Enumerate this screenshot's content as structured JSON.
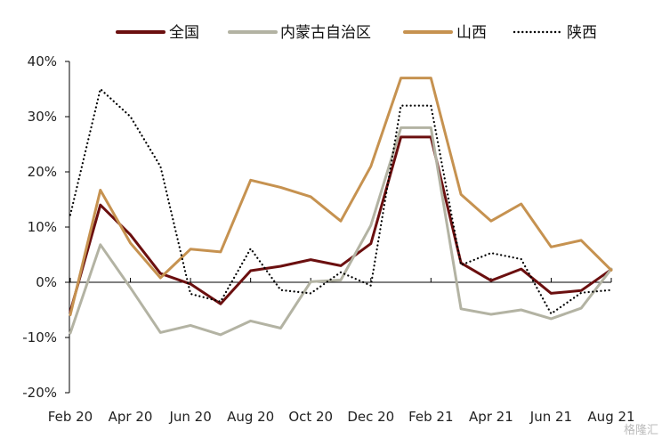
{
  "chart_data": {
    "type": "line",
    "x": [
      "Feb 20",
      "Mar 20",
      "Apr 20",
      "May 20",
      "Jun 20",
      "Jul 20",
      "Aug 20",
      "Sep 20",
      "Oct 20",
      "Nov 20",
      "Dec 20",
      "Jan 21",
      "Feb 21",
      "Mar 21",
      "Apr 21",
      "May 21",
      "Jun 21",
      "Jul 21",
      "Aug 21"
    ],
    "x_tick_labels": [
      "Feb 20",
      "Apr 20",
      "Jun 20",
      "Aug 20",
      "Oct 20",
      "Dec 20",
      "Feb 21",
      "Apr 21",
      "Jun 21",
      "Aug 21"
    ],
    "y_tick_labels": [
      "40%",
      "30%",
      "20%",
      "10%",
      "0%",
      "-10%",
      "-20%"
    ],
    "ylim": [
      -20,
      40
    ],
    "title": "",
    "xlabel": "",
    "ylabel": "",
    "legend_position": "top",
    "grid": false,
    "series": [
      {
        "name": "全国",
        "color": "#6b0f0f",
        "style": "solid",
        "values": [
          -5.3,
          14.0,
          8.6,
          1.6,
          -0.3,
          -3.9,
          2.1,
          2.9,
          4.1,
          3.0,
          7.0,
          26.3,
          26.3,
          3.5,
          0.3,
          2.4,
          -2.0,
          -1.5,
          2.3
        ]
      },
      {
        "name": "内蒙古自治区",
        "color": "#b3b3a3",
        "style": "solid",
        "values": [
          -9.2,
          6.8,
          -1.0,
          -9.1,
          -7.8,
          -9.5,
          -7.0,
          -8.3,
          0.1,
          0.4,
          10.3,
          28.0,
          28.0,
          -4.8,
          -5.8,
          -5.0,
          -6.6,
          -4.7,
          2.4
        ]
      },
      {
        "name": "山西",
        "color": "#c69250",
        "style": "solid",
        "values": [
          -5.9,
          16.7,
          7.1,
          0.8,
          6.0,
          5.5,
          18.5,
          17.2,
          15.5,
          11.1,
          21.0,
          37.0,
          37.0,
          15.9,
          11.1,
          14.2,
          6.4,
          7.6,
          2.2
        ]
      },
      {
        "name": "陕西",
        "color": "#000000",
        "style": "dotted",
        "values": [
          12.2,
          35.0,
          30.0,
          21.0,
          -2.1,
          -3.5,
          6.1,
          -1.4,
          -2.0,
          1.8,
          -0.6,
          32.0,
          32.0,
          3.1,
          5.3,
          4.2,
          -5.7,
          -1.9,
          -1.4
        ]
      }
    ]
  },
  "watermark": "格隆汇"
}
